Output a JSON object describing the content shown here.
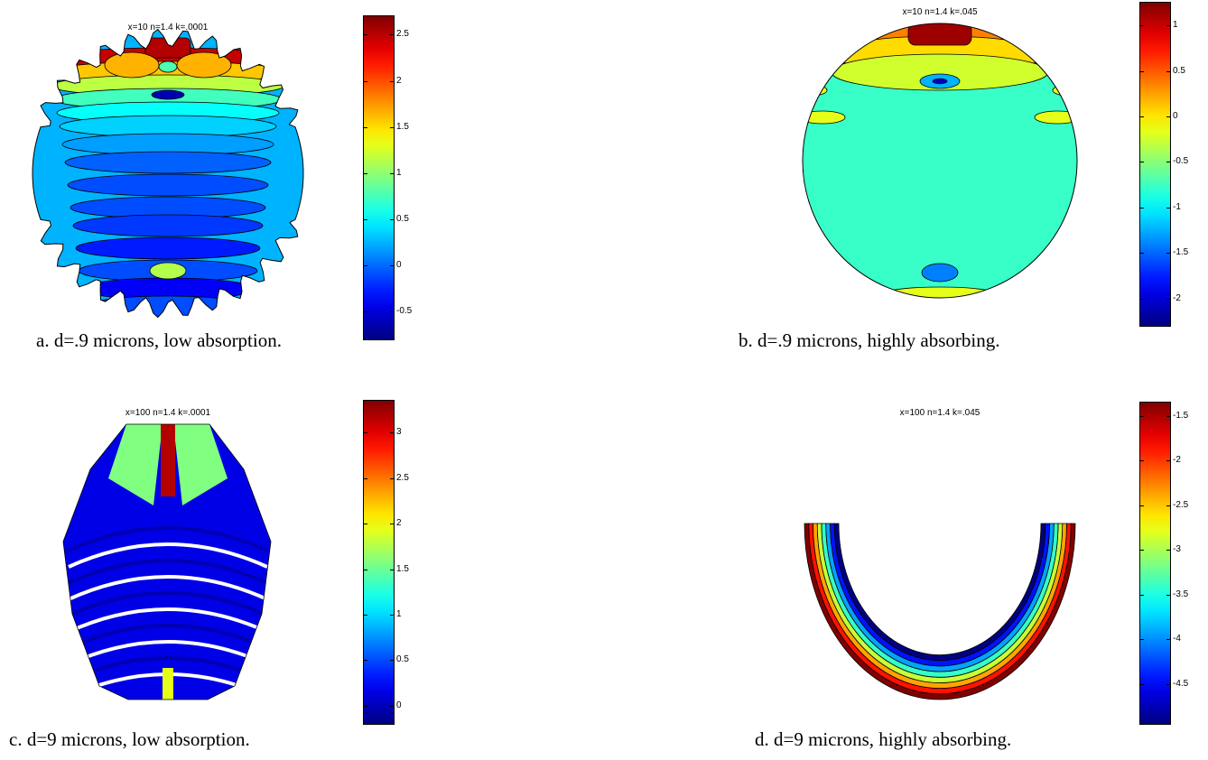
{
  "figure": {
    "panels": [
      {
        "title": "x=10 n=1.4 k=.0001",
        "caption": "a.  d=.9 microns, low absorption.",
        "colorbar_ticks": [
          "2.5",
          "2",
          "1.5",
          "1",
          "0.5",
          "0",
          "-0.5"
        ]
      },
      {
        "title": "x=10 n=1.4 k=.045",
        "caption": "b.  d=.9 microns, highly absorbing.",
        "colorbar_ticks": [
          "1",
          "0.5",
          "0",
          "-0.5",
          "-1",
          "-1.5",
          "-2"
        ]
      },
      {
        "title": "x=100 n=1.4 k=.0001",
        "caption": "c.  d=9 microns, low absorption.",
        "colorbar_ticks": [
          "3",
          "2.5",
          "2",
          "1.5",
          "1",
          "0.5",
          "0"
        ]
      },
      {
        "title": "x=100 n=1.4 k=.045",
        "caption": "d.  d=9 microns, highly absorbing.",
        "colorbar_ticks": [
          "-1.5",
          "-2",
          "-2.5",
          "-3",
          "-3.5",
          "-4",
          "-4.5"
        ]
      }
    ]
  },
  "chart_data": [
    {
      "type": "heatmap",
      "title": "x=10 n=1.4 k=.0001",
      "colormap": "jet",
      "colorbar": {
        "range": [
          -0.8,
          2.7
        ],
        "ticks": [
          2.5,
          2,
          1.5,
          1,
          0.5,
          0,
          -0.5
        ]
      },
      "shape": "disk"
    },
    {
      "type": "heatmap",
      "title": "x=10 n=1.4 k=.045",
      "colormap": "jet",
      "colorbar": {
        "range": [
          -2.3,
          1.25
        ],
        "ticks": [
          1,
          0.5,
          0,
          -0.5,
          -1,
          -1.5,
          -2
        ]
      },
      "shape": "disk"
    },
    {
      "type": "heatmap",
      "title": "x=100 n=1.4 k=.0001",
      "colormap": "jet",
      "colorbar": {
        "range": [
          -0.2,
          3.35
        ],
        "ticks": [
          3,
          2.5,
          2,
          1.5,
          1,
          0.5,
          0
        ]
      },
      "shape": "disk"
    },
    {
      "type": "heatmap",
      "title": "x=100 n=1.4 k=.045",
      "colormap": "jet",
      "colorbar": {
        "range": [
          -4.95,
          -1.35
        ],
        "ticks": [
          -1.5,
          -2,
          -2.5,
          -3,
          -3.5,
          -4,
          -4.5
        ]
      },
      "shape": "lower half-annulus"
    }
  ]
}
